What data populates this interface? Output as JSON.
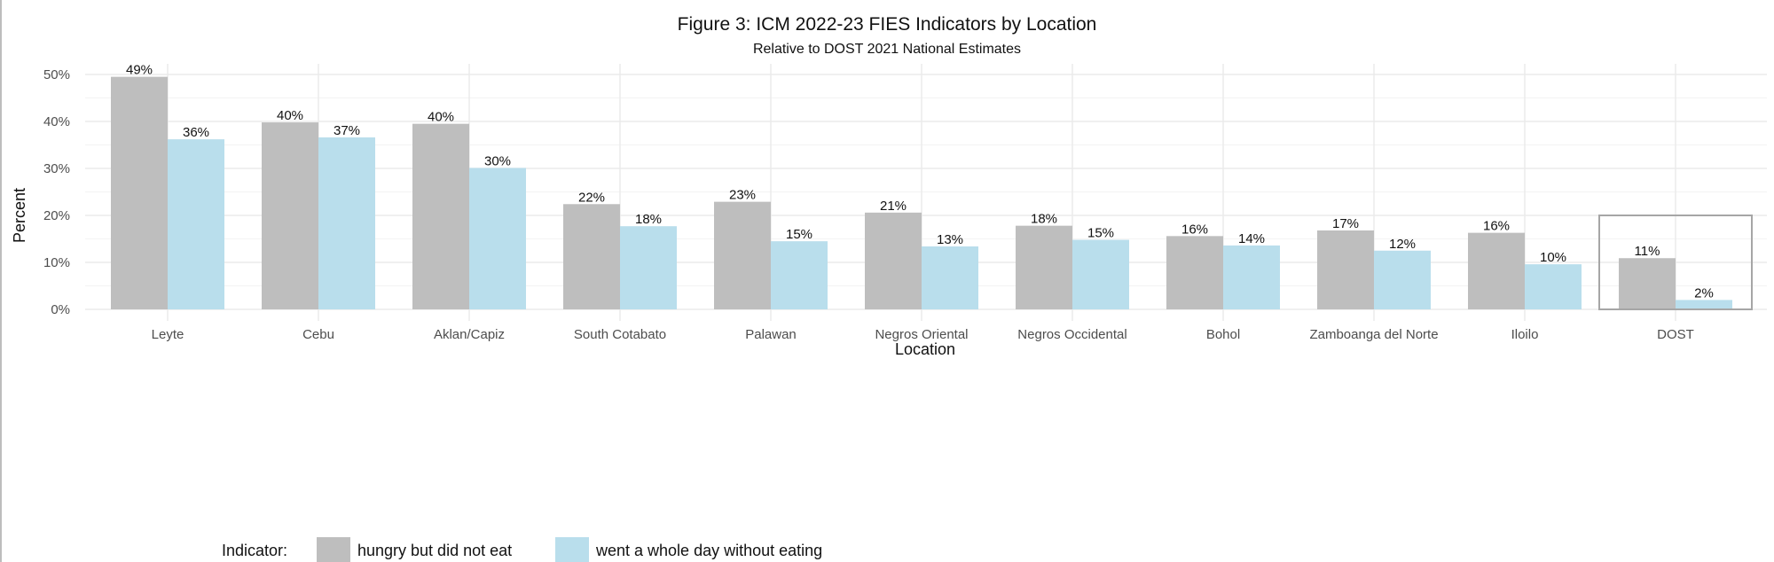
{
  "chart_data": {
    "type": "bar",
    "title": "Figure 3: ICM 2022-23 FIES Indicators by Location",
    "subtitle": "Relative to DOST 2021 National Estimates",
    "xlabel": "Location",
    "ylabel": "Percent",
    "ylim": [
      0,
      52
    ],
    "yticks": [
      0,
      10,
      20,
      30,
      40,
      50
    ],
    "ytick_labels": [
      "0%",
      "10%",
      "20%",
      "30%",
      "40%",
      "50%"
    ],
    "grid": true,
    "legend_title": "Indicator:",
    "legend_position": "bottom",
    "categories": [
      "Leyte",
      "Cebu",
      "Aklan/Capiz",
      "South Cotabato",
      "Palawan",
      "Negros Oriental",
      "Negros Occidental",
      "Bohol",
      "Zamboanga del Norte",
      "Iloilo",
      "DOST"
    ],
    "series": [
      {
        "name": "hungry but did not eat",
        "color": "#bebebe",
        "values": [
          49.5,
          39.8,
          39.5,
          22.4,
          22.9,
          20.6,
          17.8,
          15.6,
          16.8,
          16.3,
          10.9
        ],
        "labels": [
          "49%",
          "40%",
          "40%",
          "22%",
          "23%",
          "21%",
          "18%",
          "16%",
          "17%",
          "16%",
          "11%"
        ]
      },
      {
        "name": "went a whole day without eating",
        "color": "#b9deec",
        "values": [
          36.2,
          36.6,
          30.1,
          17.7,
          14.5,
          13.4,
          14.8,
          13.6,
          12.5,
          9.6,
          2.0
        ],
        "labels": [
          "36%",
          "37%",
          "30%",
          "18%",
          "15%",
          "13%",
          "15%",
          "14%",
          "12%",
          "10%",
          "2%"
        ]
      }
    ],
    "highlight": {
      "category": "DOST",
      "upper": 20
    }
  }
}
